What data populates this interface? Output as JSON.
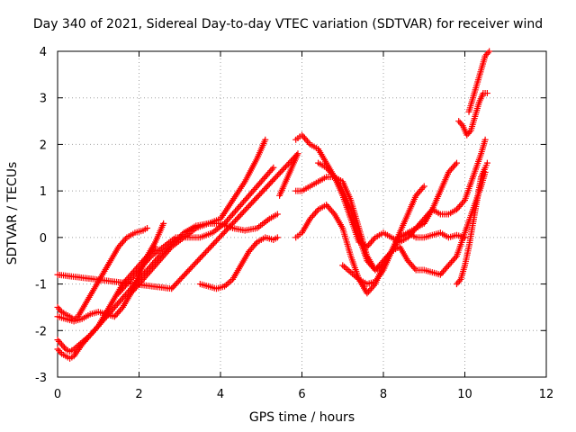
{
  "chart_data": {
    "type": "scatter",
    "title": "Day 340 of 2021, Sidereal Day-to-day VTEC variation (SDTVAR) for receiver wind",
    "xlabel": "GPS time / hours",
    "ylabel": "SDTVAR / TECUs",
    "xlim": [
      0,
      12
    ],
    "ylim": [
      -3,
      4
    ],
    "xticks": [
      "0",
      "2",
      "4",
      "6",
      "8",
      "10",
      "12"
    ],
    "yticks": [
      "-3",
      "-2",
      "-1",
      "0",
      "1",
      "2",
      "3",
      "4"
    ],
    "grid": true,
    "marker": "+",
    "color": "#ff0000",
    "series": [
      {
        "x": [
          0.0,
          0.1,
          0.2,
          0.3,
          0.4,
          0.5,
          0.7,
          0.9,
          1.1,
          1.3,
          1.5,
          1.7,
          1.9,
          2.1,
          2.2
        ],
        "y": [
          -1.5,
          -1.6,
          -1.65,
          -1.7,
          -1.75,
          -1.7,
          -1.4,
          -1.1,
          -0.8,
          -0.5,
          -0.2,
          0.0,
          0.1,
          0.15,
          0.2
        ]
      },
      {
        "x": [
          0.0,
          0.2,
          0.4,
          0.6,
          0.8,
          1.0,
          1.2,
          1.4,
          1.6,
          1.8,
          2.0,
          2.2,
          2.4,
          2.5,
          2.6
        ],
        "y": [
          -1.7,
          -1.75,
          -1.8,
          -1.75,
          -1.65,
          -1.6,
          -1.65,
          -1.7,
          -1.5,
          -1.2,
          -0.8,
          -0.4,
          -0.1,
          0.1,
          0.3
        ]
      },
      {
        "x": [
          0.0,
          0.1,
          0.2,
          0.3,
          0.4,
          0.6,
          0.8,
          1.0,
          1.2,
          1.4,
          1.6,
          1.8,
          2.0,
          2.2,
          2.4
        ],
        "y": [
          -2.2,
          -2.3,
          -2.4,
          -2.45,
          -2.4,
          -2.25,
          -2.1,
          -1.9,
          -1.6,
          -1.3,
          -1.0,
          -0.8,
          -0.6,
          -0.4,
          -0.2
        ]
      },
      {
        "x": [
          0.0,
          0.1,
          0.2,
          0.3,
          0.4,
          0.6,
          0.8,
          1.0,
          1.3,
          1.6,
          1.9,
          2.2,
          2.5,
          2.8,
          3.1,
          3.4,
          3.7,
          4.0,
          4.3,
          4.6,
          4.9,
          5.1
        ],
        "y": [
          -2.4,
          -2.5,
          -2.55,
          -2.6,
          -2.55,
          -2.3,
          -2.1,
          -1.9,
          -1.6,
          -1.3,
          -1.0,
          -0.7,
          -0.4,
          -0.15,
          0.1,
          0.25,
          0.3,
          0.4,
          0.8,
          1.2,
          1.7,
          2.1
        ]
      },
      {
        "x": [
          1.5,
          1.7,
          1.9,
          2.1,
          2.3,
          2.6,
          2.9,
          3.2,
          3.5,
          3.8,
          4.1,
          4.3,
          4.5,
          4.7,
          4.9,
          5.1,
          5.3
        ],
        "y": [
          -1.2,
          -1.0,
          -0.8,
          -0.6,
          -0.4,
          -0.2,
          0.0,
          0.0,
          0.0,
          0.1,
          0.3,
          0.5,
          0.7,
          0.9,
          1.1,
          1.3,
          1.5
        ]
      },
      {
        "x": [
          1.8,
          2.0,
          2.2,
          2.5,
          2.8,
          3.1,
          3.4,
          3.7,
          4.0,
          4.3,
          4.6,
          4.9,
          5.2,
          5.4
        ],
        "y": [
          -1.2,
          -1.0,
          -0.8,
          -0.5,
          -0.2,
          0.0,
          0.2,
          0.3,
          0.3,
          0.2,
          0.15,
          0.2,
          0.4,
          0.5
        ]
      },
      {
        "x": [
          3.5,
          3.7,
          3.9,
          4.1,
          4.3,
          4.5,
          4.7,
          4.9,
          5.1,
          5.3,
          5.4
        ],
        "y": [
          -1.0,
          -1.05,
          -1.1,
          -1.05,
          -0.9,
          -0.6,
          -0.3,
          -0.1,
          0.0,
          -0.05,
          0.0
        ]
      },
      {
        "x": [
          5.85,
          6.0,
          6.2,
          6.4,
          6.6,
          6.8,
          7.0,
          7.2,
          7.4,
          7.6,
          7.8,
          8.0,
          8.2,
          8.4,
          8.6,
          8.8,
          9.0,
          9.2,
          9.4,
          9.6,
          9.8
        ],
        "y": [
          2.1,
          2.2,
          2.0,
          1.9,
          1.6,
          1.3,
          0.9,
          0.4,
          -0.1,
          -0.2,
          0.0,
          0.1,
          0.0,
          -0.1,
          0.0,
          0.2,
          0.4,
          0.6,
          1.0,
          1.4,
          1.6
        ]
      },
      {
        "x": [
          5.85,
          6.0,
          6.2,
          6.4,
          6.6,
          6.8,
          7.0,
          7.2,
          7.4,
          7.6,
          7.8,
          8.0,
          8.2,
          8.4,
          8.6,
          8.8,
          9.0,
          9.2,
          9.4,
          9.6,
          9.8,
          10.0,
          10.2,
          10.4,
          10.5
        ],
        "y": [
          1.0,
          1.0,
          1.1,
          1.2,
          1.3,
          1.3,
          1.2,
          0.8,
          0.2,
          -0.4,
          -0.7,
          -0.6,
          -0.3,
          0.0,
          0.1,
          0.2,
          0.3,
          0.6,
          0.5,
          0.5,
          0.6,
          0.8,
          1.3,
          1.8,
          2.1
        ]
      },
      {
        "x": [
          5.85,
          6.0,
          6.2,
          6.4,
          6.6,
          6.8,
          7.0,
          7.2,
          7.4,
          7.6,
          7.8,
          8.0,
          8.2,
          8.4,
          8.6,
          8.8,
          9.0,
          9.2,
          9.4,
          9.6,
          9.8,
          10.0
        ],
        "y": [
          0.0,
          0.1,
          0.4,
          0.6,
          0.7,
          0.5,
          0.2,
          -0.4,
          -0.9,
          -1.2,
          -1.0,
          -0.6,
          -0.3,
          0.0,
          0.1,
          0.0,
          0.0,
          0.05,
          0.1,
          0.0,
          0.05,
          0.0
        ]
      },
      {
        "x": [
          6.4,
          6.6,
          6.8,
          7.0,
          7.2,
          7.4,
          7.6,
          7.8,
          8.0,
          8.2,
          8.4,
          8.6,
          8.8,
          9.0,
          9.2,
          9.4,
          9.6,
          9.8,
          10.0,
          10.2,
          10.4,
          10.5
        ],
        "y": [
          1.6,
          1.5,
          1.3,
          1.0,
          0.6,
          0.0,
          -0.5,
          -0.7,
          -0.5,
          -0.3,
          -0.2,
          -0.5,
          -0.7,
          -0.7,
          -0.75,
          -0.8,
          -0.6,
          -0.4,
          0.1,
          0.6,
          1.1,
          1.4
        ]
      },
      {
        "x": [
          7.0,
          7.2,
          7.4,
          7.6,
          7.8,
          8.0,
          8.2,
          8.4,
          8.6,
          8.8,
          9.0
        ],
        "y": [
          -0.6,
          -0.75,
          -0.9,
          -1.0,
          -0.95,
          -0.7,
          -0.3,
          0.1,
          0.5,
          0.9,
          1.1
        ]
      },
      {
        "x": [
          9.8,
          9.9,
          10.0,
          10.1,
          10.2,
          10.3,
          10.4,
          10.5,
          10.55
        ],
        "y": [
          -1.0,
          -0.9,
          -0.6,
          -0.2,
          0.3,
          0.8,
          1.3,
          1.5,
          1.6
        ]
      },
      {
        "x": [
          9.85,
          9.95,
          10.05,
          10.15,
          10.25,
          10.35,
          10.45,
          10.55
        ],
        "y": [
          2.5,
          2.4,
          2.2,
          2.3,
          2.6,
          2.9,
          3.1,
          3.1
        ]
      },
      {
        "x": [
          10.1,
          10.2,
          10.3,
          10.4,
          10.5,
          10.6
        ],
        "y": [
          2.7,
          3.0,
          3.3,
          3.6,
          3.9,
          4.0
        ]
      },
      {
        "x": [
          0.0,
          2.8,
          5.9,
          5.45
        ],
        "y": [
          -0.8,
          -1.1,
          1.8,
          0.9
        ]
      }
    ]
  }
}
